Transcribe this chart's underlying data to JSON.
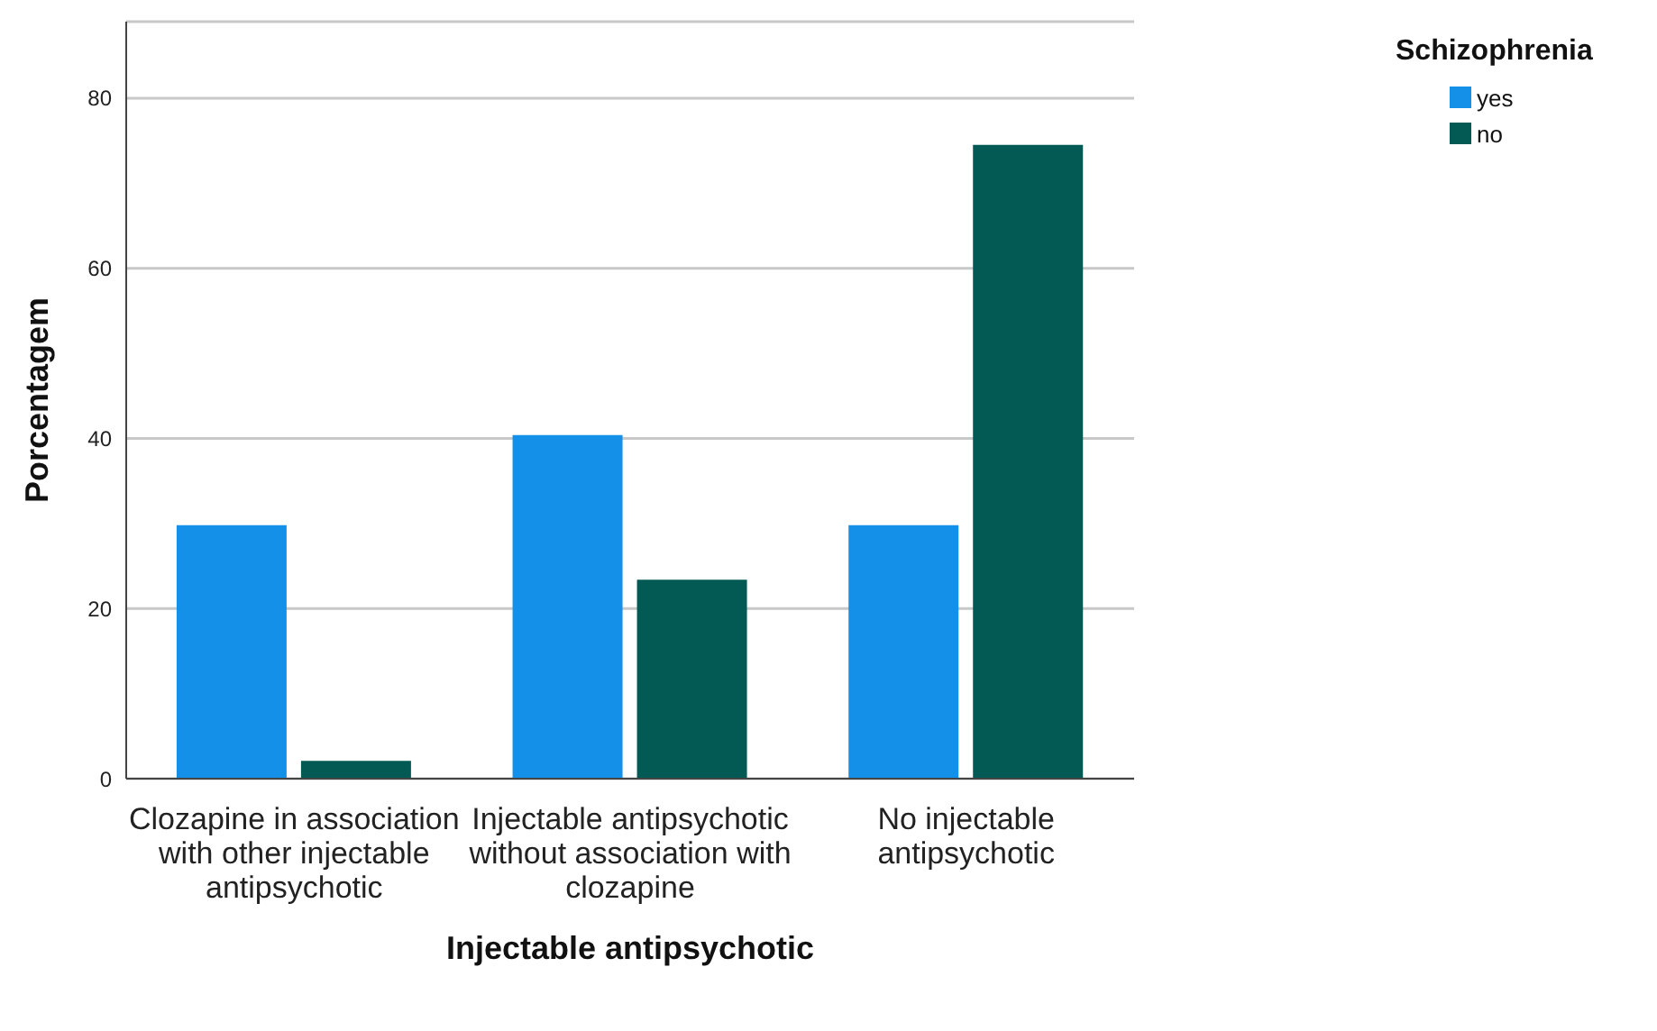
{
  "chart_data": {
    "type": "bar",
    "xlabel": "Injectable antipsychotic",
    "ylabel": "Porcentagem",
    "legend_title": "Schizophrenia",
    "legend": "top right",
    "categories": [
      "Clozapine in association with other injectable antipsychotic",
      "Injectable antipsychotic without association with clozapine",
      "No injectable antipsychotic"
    ],
    "series": [
      {
        "name": "yes",
        "color": "#1490e8",
        "values": [
          29.8,
          40.4,
          29.8
        ]
      },
      {
        "name": "no",
        "color": "#035a55",
        "values": [
          2.1,
          23.4,
          74.5
        ]
      }
    ],
    "ylim": [
      0,
      89
    ],
    "yticks": [
      0,
      20,
      40,
      60,
      80
    ],
    "grid": "y"
  }
}
